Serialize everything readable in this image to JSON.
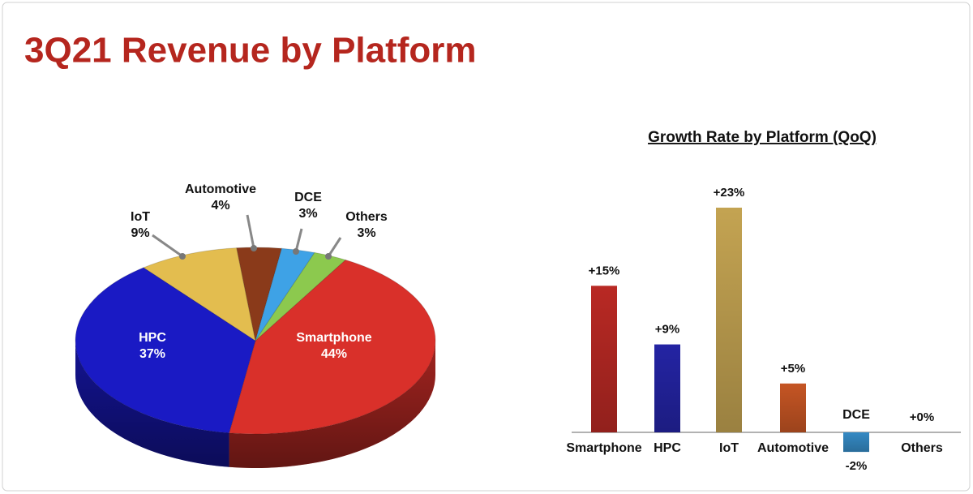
{
  "title": "3Q21 Revenue by Platform",
  "chart_data": [
    {
      "type": "pie",
      "categories": [
        "Smartphone",
        "HPC",
        "IoT",
        "Automotive",
        "DCE",
        "Others"
      ],
      "values": [
        44,
        37,
        9,
        4,
        3,
        3
      ],
      "value_labels": [
        "44%",
        "37%",
        "9%",
        "4%",
        "3%",
        "3%"
      ],
      "colors": [
        "#d9302a",
        "#1a1ac4",
        "#e3bd4f",
        "#8a3a1a",
        "#3ea2e6",
        "#8cc94e"
      ]
    },
    {
      "type": "bar",
      "title": "Growth Rate by Platform (QoQ)",
      "categories": [
        "Smartphone",
        "HPC",
        "IoT",
        "Automotive",
        "DCE",
        "Others"
      ],
      "values": [
        15,
        9,
        23,
        5,
        -2,
        0
      ],
      "value_labels": [
        "+15%",
        "+9%",
        "+23%",
        "+5%",
        "-2%",
        "+0%"
      ],
      "colors": [
        "#d9302a",
        "#2a2ac0",
        "#e6c060",
        "#e8642a",
        "#3ea2e6",
        "#8cc94e"
      ]
    }
  ]
}
